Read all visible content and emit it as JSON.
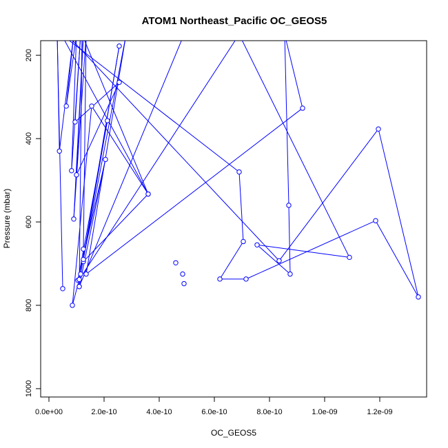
{
  "chart_data": {
    "type": "line",
    "title": "ATOM1 Northeast_Pacific OC_GEOS5",
    "xlabel": "OC_GEOS5",
    "ylabel": "Pressure (mbar)",
    "xlim": [
      -3e-11,
      1.37e-09
    ],
    "ylim": [
      1020,
      165
    ],
    "y_reversed": true,
    "grid": false,
    "xticks": [
      {
        "value": 0,
        "label": "0.0e+00"
      },
      {
        "value": 2e-10,
        "label": "2.0e-10"
      },
      {
        "value": 4e-10,
        "label": "4.0e-10"
      },
      {
        "value": 6e-10,
        "label": "6.0e-10"
      },
      {
        "value": 8e-10,
        "label": "8.0e-10"
      },
      {
        "value": 1e-09,
        "label": "1.0e-09"
      },
      {
        "value": 1.2e-09,
        "label": "1.2e-09"
      }
    ],
    "yticks": [
      {
        "value": 200,
        "label": "200"
      },
      {
        "value": 400,
        "label": "400"
      },
      {
        "value": 600,
        "label": "600"
      },
      {
        "value": 800,
        "label": "800"
      },
      {
        "value": 1000,
        "label": "1000"
      }
    ],
    "series": [
      {
        "color": "#0000ff",
        "marker": "open-circle",
        "points": [
          [
            5e-11,
            760
          ],
          [
            3e-11,
            150
          ],
          [
            3.8e-11,
            430
          ],
          [
            9e-11,
            150
          ],
          [
            6.3e-11,
            322
          ],
          [
            1e-10,
            150
          ],
          [
            8.2e-11,
            477
          ],
          [
            1.15e-10,
            150
          ],
          [
            9.5e-11,
            360
          ],
          [
            2.55e-10,
            265
          ],
          [
            1e-10,
            487
          ],
          [
            1.25e-10,
            150
          ],
          [
            9e-11,
            593
          ],
          [
            1.35e-10,
            150
          ],
          [
            1.25e-10,
            665
          ],
          [
            1.25e-10,
            695
          ],
          [
            3.6e-10,
            533
          ],
          [
            1.2e-10,
            150
          ],
          [
            1.1e-10,
            755
          ],
          [
            2.05e-10,
            450
          ],
          [
            1.05e-10,
            740
          ],
          [
            2.12e-10,
            357
          ],
          [
            1.15e-10,
            725
          ],
          [
            2.55e-10,
            178
          ],
          [
            1.25e-10,
            690
          ],
          [
            2.8e-10,
            150
          ],
          [
            1.35e-10,
            725
          ],
          [
            9.2e-10,
            327
          ],
          [
            8.55e-10,
            150
          ],
          [
            8.7e-10,
            560
          ],
          [
            8.75e-10,
            725
          ],
          [
            7.55e-10,
            655
          ],
          [
            1.09e-09,
            685
          ],
          [
            6.9e-10,
            150
          ],
          [
            1.1e-10,
            738
          ],
          [
            8.5e-11,
            800
          ],
          [
            1.55e-10,
            322
          ],
          [
            3.6e-10,
            533
          ],
          [
            4.5e-11,
            150
          ],
          [
            6.9e-10,
            480
          ],
          [
            7.05e-10,
            647
          ],
          [
            6.2e-10,
            737
          ],
          [
            7.15e-10,
            737
          ],
          [
            1.185e-09,
            597
          ],
          [
            1.34e-09,
            780
          ],
          [
            1.195e-09,
            377
          ],
          [
            8.35e-10,
            693
          ],
          [
            6.5e-11,
            150
          ],
          [
            4.9e-10,
            150
          ],
          [
            1.1e-10,
            755
          ]
        ],
        "markers_extra": [
          [
            4.6e-10,
            698
          ],
          [
            4.85e-10,
            725
          ],
          [
            4.9e-10,
            748
          ]
        ]
      }
    ]
  }
}
